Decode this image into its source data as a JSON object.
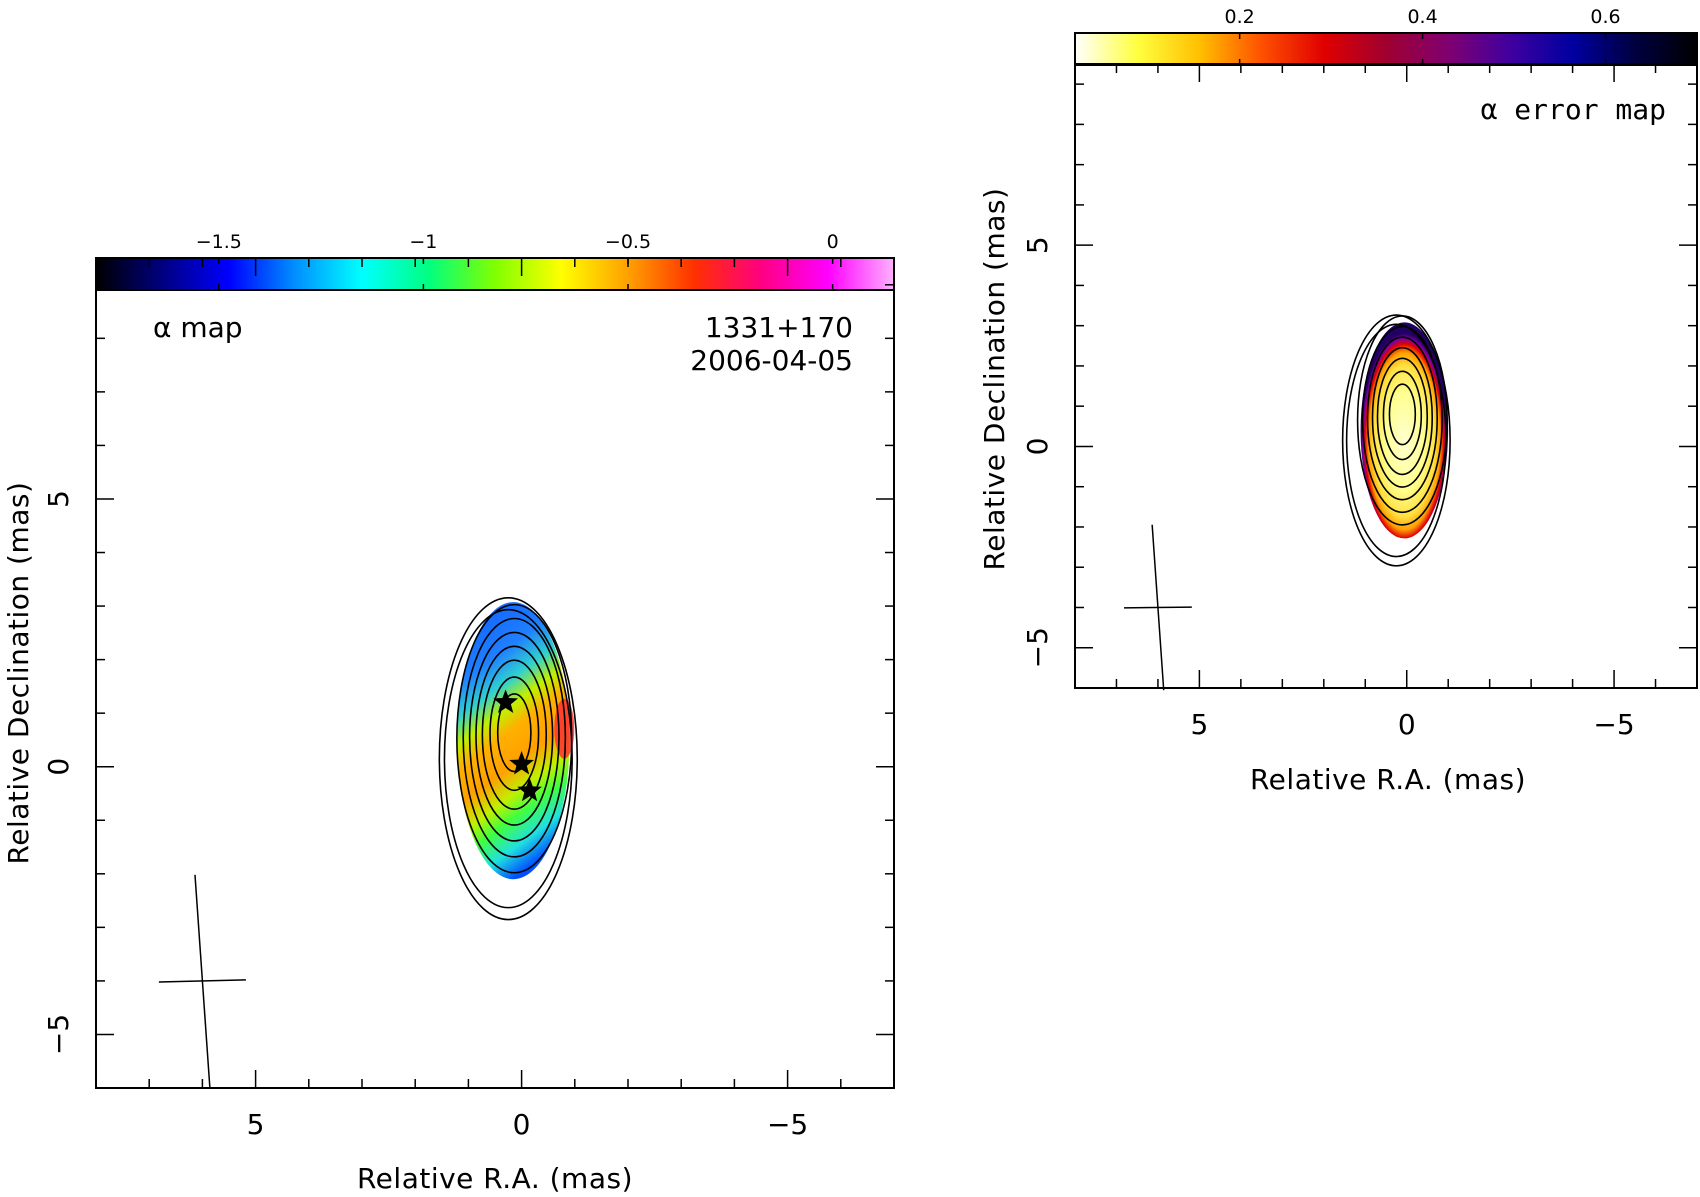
{
  "chart_data": [
    {
      "type": "heatmap",
      "name": "alpha-map",
      "panel_label": "α map",
      "source": "1331+170",
      "date": "2006-04-05",
      "xlabel": "Relative R.A. (mas)",
      "ylabel": "Relative Declination (mas)",
      "xlim": [
        8,
        -7
      ],
      "ylim": [
        -6,
        9.5
      ],
      "x_ticks": [
        5,
        0,
        -5
      ],
      "x_tick_labels": [
        "5",
        "0",
        "−5"
      ],
      "y_ticks": [
        -5,
        0,
        5
      ],
      "y_tick_labels": [
        "−5",
        "0",
        "5"
      ],
      "colorbar": {
        "range": [
          -1.8,
          0.15
        ],
        "ticks": [
          -1.5,
          -1,
          -0.5,
          0
        ],
        "tick_labels": [
          "−1.5",
          "−1",
          "−0.5",
          "0"
        ],
        "colors": [
          "#000000",
          "#000080",
          "#0000ff",
          "#0090ff",
          "#00ffff",
          "#00ff80",
          "#80ff00",
          "#ffff00",
          "#ffa000",
          "#ff3000",
          "#ff0080",
          "#ff00ff",
          "#ffb0ff"
        ]
      },
      "components": [
        {
          "x": 0.3,
          "y": 1.2
        },
        {
          "x": 0.0,
          "y": 0.05
        },
        {
          "x": -0.15,
          "y": -0.45
        }
      ],
      "beam": {
        "major_mas": 2.0,
        "minor_mas": 1.0,
        "center": [
          6.0,
          -4.0
        ]
      }
    },
    {
      "type": "heatmap",
      "name": "alpha-error-map",
      "panel_label": "α error map",
      "xlabel": "Relative R.A. (mas)",
      "ylabel": "Relative Declination (mas)",
      "xlim": [
        8,
        -7
      ],
      "ylim": [
        -6,
        9.5
      ],
      "x_ticks": [
        5,
        0,
        -5
      ],
      "x_tick_labels": [
        "5",
        "0",
        "−5"
      ],
      "y_ticks": [
        -5,
        0,
        5
      ],
      "y_tick_labels": [
        "−5",
        "0",
        "5"
      ],
      "colorbar": {
        "range": [
          0.02,
          0.7
        ],
        "ticks": [
          0.2,
          0.4,
          0.6
        ],
        "tick_labels": [
          "0.2",
          "0.4",
          "0.6"
        ],
        "colors": [
          "#ffffff",
          "#ffff40",
          "#ffc000",
          "#ff5000",
          "#e00000",
          "#a00030",
          "#800070",
          "#4000a0",
          "#0000a0",
          "#000040",
          "#000000"
        ]
      },
      "beam": {
        "major_mas": 2.0,
        "minor_mas": 1.0,
        "center": [
          6.0,
          -4.0
        ]
      }
    }
  ]
}
